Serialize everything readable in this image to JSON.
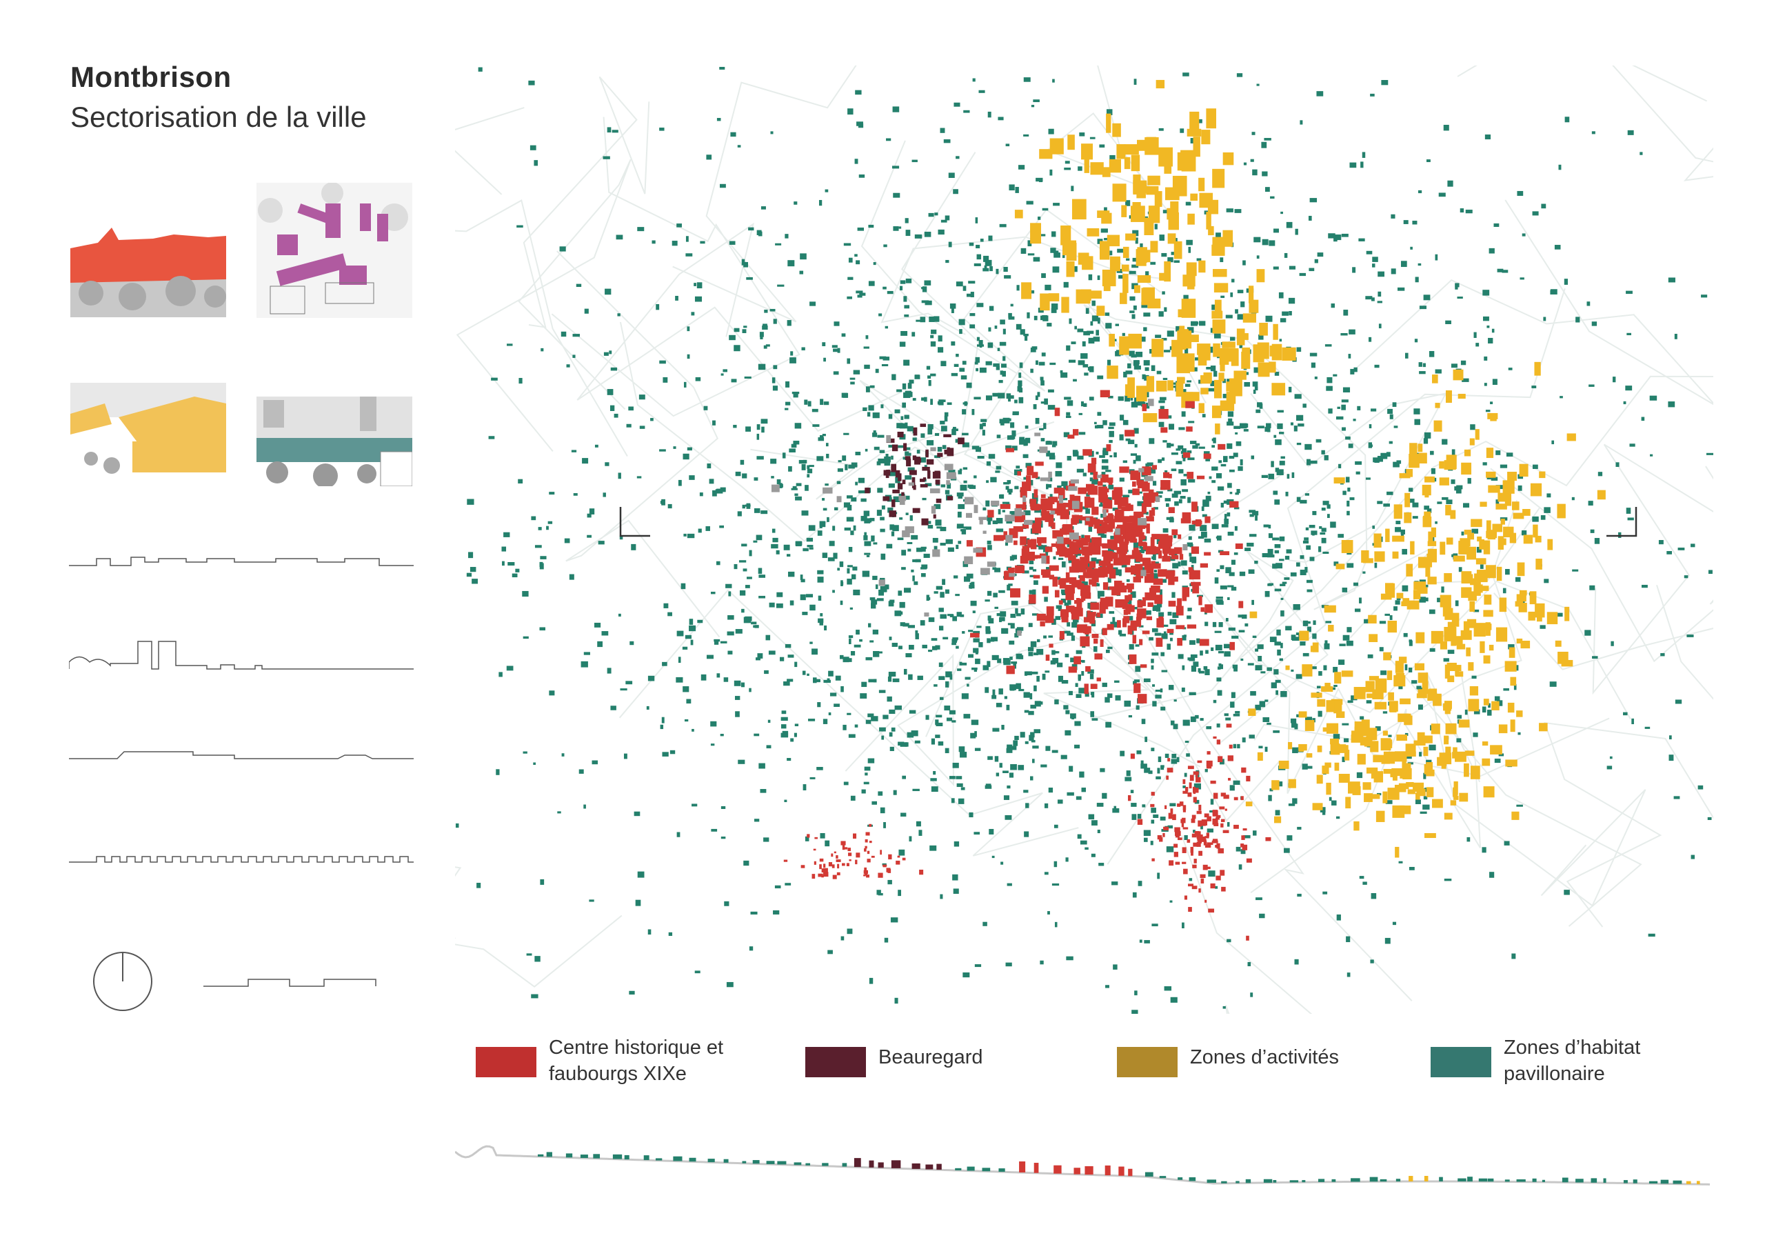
{
  "header": {
    "title": "Montbrison",
    "subtitle": "Sectorisation de la ville"
  },
  "thumbnails": [
    {
      "sector": "centre-historique",
      "color": "#e8553f"
    },
    {
      "sector": "beauregard",
      "color": "#b05aa0"
    },
    {
      "sector": "zones-activites",
      "color": "#f2c257"
    },
    {
      "sector": "habitat-pavillonaire",
      "color": "#5e9593"
    }
  ],
  "legend": [
    {
      "label_1": "Centre historique et",
      "label_2": "faubourgs XIXe",
      "color": "#c0302f"
    },
    {
      "label_1": "Beauregard",
      "label_2": "",
      "color": "#5a1f2d"
    },
    {
      "label_1": "Zones d’activités",
      "label_2": "",
      "color": "#b0892b"
    },
    {
      "label_1": "Zones d’habitat",
      "label_2": "pavillonaire",
      "color": "#357870"
    }
  ],
  "map_colors": {
    "centre": "#d23a34",
    "beauregard": "#5a1f2d",
    "activites": "#f1b824",
    "habitat": "#24806c",
    "other": "#9a9a9a",
    "roads": "#e6ecea"
  },
  "icons": {
    "orientation": "north-circle-icon",
    "section_markers": "section-corner-icon"
  }
}
